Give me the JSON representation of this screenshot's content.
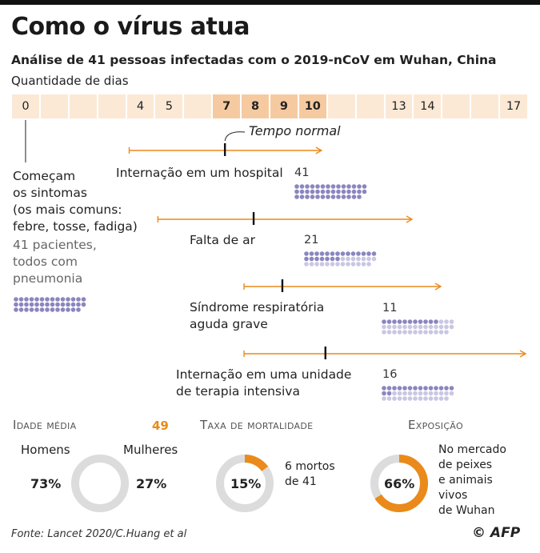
{
  "title": "Como o vírus atua",
  "subtitle": "Análise de 41 pessoas infectadas com o 2019-nCoV em Wuhan, China",
  "colors": {
    "accent": "#ea8a1a",
    "bar": "#fbe9d6",
    "bar_highlight": "#f6caa0",
    "dots": "#8a86bf",
    "dots_light": "#c9c7e2",
    "ring_grey": "#dcdcdc"
  },
  "chart_data": {
    "type": "timeline",
    "axis_label": "Quantidade de dias",
    "day_ticks": [
      "0",
      "4",
      "5",
      "7",
      "8",
      "9",
      "10",
      "13",
      "14",
      "17"
    ],
    "highlight_days": [
      "7",
      "8",
      "9",
      "10"
    ],
    "typical_label": "Tempo normal",
    "onset": {
      "label": "Começam os sintomas (os mais comuns: febre, tosse, fadiga)",
      "label_lines": [
        "Começam",
        "os sintomas",
        "(os mais comuns:",
        "febre, tosse, fadiga)"
      ],
      "note_lines": [
        "41 pacientes,",
        "todos com",
        "pneumonia"
      ],
      "day": 0,
      "patients": 41
    },
    "events": [
      {
        "label": "Internação em um hospital",
        "label_lines": [
          "Internação em um hospital"
        ],
        "count": 41,
        "typical_day": 7,
        "range": [
          4,
          10
        ]
      },
      {
        "label": "Falta de ar",
        "label_lines": [
          "Falta de ar"
        ],
        "count": 21,
        "typical_day": 8,
        "range": [
          5,
          13
        ]
      },
      {
        "label": "Síndrome respiratória aguda grave",
        "label_lines": [
          "Síndrome respiratória",
          "aguda grave"
        ],
        "count": 11,
        "typical_day": 9,
        "range": [
          8,
          14
        ]
      },
      {
        "label": "Internação em uma unidade de terapia intensiva",
        "label_lines": [
          "Internação em uma unidade",
          "de terapia intensiva"
        ],
        "count": 16,
        "typical_day": 10.5,
        "range": [
          8,
          17
        ]
      }
    ]
  },
  "stats": {
    "age": {
      "label": "Idade média",
      "value": "49",
      "men_label": "Homens",
      "men_pct": "73%",
      "women_label": "Mulheres",
      "women_pct": "27%",
      "men_share": 0.73
    },
    "mortality": {
      "label": "Taxa de mortalidade",
      "pct": "15%",
      "desc_lines": [
        "6 mortos",
        "de 41"
      ],
      "share": 0.15
    },
    "exposure": {
      "label": "Exposição",
      "pct": "66%",
      "desc_lines": [
        "No mercado",
        "de peixes",
        "e animais",
        "vivos",
        "de Wuhan"
      ],
      "share": 0.66
    }
  },
  "source": "Fonte: Lancet 2020/C.Huang et al",
  "credit": "© AFP"
}
